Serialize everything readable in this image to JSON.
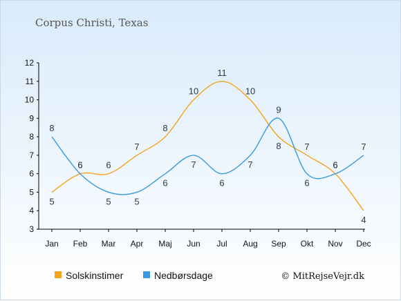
{
  "chart_data": {
    "type": "line",
    "title": "Corpus Christi, Texas",
    "categories": [
      "Jan",
      "Feb",
      "Mar",
      "Apr",
      "Maj",
      "Jun",
      "Jul",
      "Aug",
      "Sep",
      "Okt",
      "Nov",
      "Dec"
    ],
    "series": [
      {
        "name": "Solskinstimer",
        "color": "#f5a31a",
        "values": [
          5,
          6,
          6,
          7,
          8,
          10,
          11,
          10,
          8,
          7,
          6,
          4
        ]
      },
      {
        "name": "Nedbørsdage",
        "color": "#3a9ae0",
        "values": [
          8,
          6,
          5,
          5,
          6,
          7,
          6,
          7,
          9,
          6,
          6,
          7
        ]
      }
    ],
    "ylim": [
      3,
      12
    ],
    "yticks": [
      3,
      4,
      5,
      6,
      7,
      8,
      9,
      10,
      11,
      12
    ],
    "legend_position": "bottom-left",
    "grid": false,
    "credit": "© MitRejseVejr.dk"
  }
}
